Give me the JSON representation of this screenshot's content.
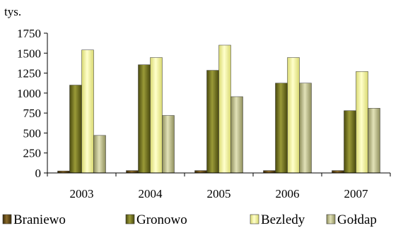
{
  "chart_data": {
    "type": "bar",
    "unit_label": "tys.",
    "categories": [
      "2003",
      "2004",
      "2005",
      "2006",
      "2007"
    ],
    "ylim": [
      0,
      1750
    ],
    "yticks": [
      "0",
      "250",
      "500",
      "750",
      "1000",
      "1250",
      "1500",
      "1750"
    ],
    "ytick_values": [
      0,
      250,
      500,
      750,
      1000,
      1250,
      1500,
      1750
    ],
    "grid": false,
    "legend_position": "bottom",
    "series": [
      {
        "name": "Braniewo",
        "values": [
          25,
          30,
          30,
          30,
          30
        ],
        "color": "#5a4214"
      },
      {
        "name": "Gronowo",
        "values": [
          1100,
          1355,
          1285,
          1125,
          780
        ],
        "color": "#6e6e1c"
      },
      {
        "name": "Bezledy",
        "values": [
          1540,
          1445,
          1600,
          1445,
          1270
        ],
        "color": "#f3f39b"
      },
      {
        "name": "Gołdap",
        "values": [
          470,
          720,
          955,
          1125,
          810
        ],
        "color": "#bdbd8a"
      }
    ]
  }
}
